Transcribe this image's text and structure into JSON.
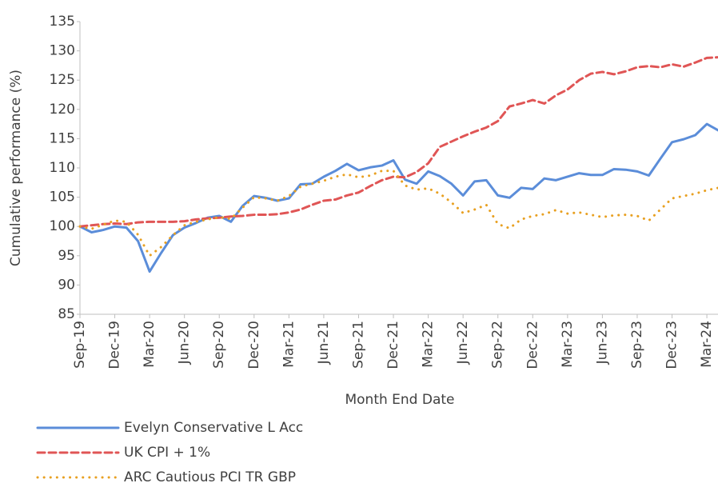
{
  "chart_data": {
    "type": "line",
    "y_label": "Cumulative performance (%)",
    "x_label": "Month End Date",
    "categories": [
      "Sep-19",
      null,
      null,
      "Dec-19",
      null,
      null,
      "Mar-20",
      null,
      null,
      "Jun-20",
      null,
      null,
      "Sep-20",
      null,
      null,
      "Dec-20",
      null,
      null,
      "Mar-21",
      null,
      null,
      "Jun-21",
      null,
      null,
      "Sep-21",
      null,
      null,
      "Dec-21",
      null,
      null,
      "Mar-22",
      null,
      null,
      "Jun-22",
      null,
      null,
      "Sep-22",
      null,
      null,
      "Dec-22",
      null,
      null,
      "Mar-23",
      null,
      null,
      "Jun-23",
      null,
      null,
      "Sep-23",
      null,
      null,
      "Dec-23",
      null,
      null,
      "Mar-24",
      null
    ],
    "series": [
      {
        "name": "Evelyn Conservative L Acc",
        "color": "#5b8dd9",
        "style": "solid",
        "values": [
          100,
          99,
          99.4,
          100,
          99.8,
          97.5,
          92.3,
          95.5,
          98.5,
          99.8,
          100.6,
          101.5,
          101.8,
          100.8,
          103.5,
          105.2,
          104.9,
          104.4,
          104.8,
          107.2,
          107.3,
          108.5,
          109.5,
          110.7,
          109.6,
          110.1,
          110.4,
          111.3,
          108.0,
          107.3,
          109.4,
          108.6,
          107.3,
          105.3,
          107.7,
          107.9,
          105.3,
          104.9,
          106.6,
          106.4,
          108.2,
          107.9,
          108.5,
          109.1,
          108.8,
          108.8,
          109.8,
          109.7,
          109.4,
          108.7,
          111.6,
          114.4,
          114.9,
          115.6,
          117.5,
          116.4
        ]
      },
      {
        "name": "UK CPI + 1%",
        "color": "#e05555",
        "style": "dashed",
        "values": [
          100,
          100.2,
          100.4,
          100.5,
          100.4,
          100.7,
          100.8,
          100.8,
          100.8,
          100.9,
          101.2,
          101.4,
          101.5,
          101.7,
          101.8,
          102.0,
          102.0,
          102.1,
          102.4,
          102.9,
          103.7,
          104.4,
          104.6,
          105.3,
          105.8,
          106.9,
          107.9,
          108.5,
          108.4,
          109.3,
          110.8,
          113.6,
          114.5,
          115.4,
          116.2,
          116.9,
          118.0,
          120.5,
          121.0,
          121.6,
          121.0,
          122.4,
          123.4,
          125.0,
          126.1,
          126.4,
          126.0,
          126.5,
          127.2,
          127.4,
          127.2,
          127.7,
          127.3,
          128.0,
          128.8,
          128.9
        ]
      },
      {
        "name": "ARC Cautious PCI TR GBP",
        "color": "#e8a021",
        "style": "dotted",
        "values": [
          100,
          99.6,
          100.3,
          101,
          100.8,
          98.6,
          95,
          96.5,
          98.5,
          100.2,
          100.8,
          101.2,
          101.6,
          101.3,
          103.2,
          105.0,
          104.8,
          104.4,
          105.2,
          106.8,
          107.3,
          107.8,
          108.5,
          108.9,
          108.4,
          108.7,
          109.5,
          109.5,
          107.0,
          106.3,
          106.5,
          105.6,
          104.1,
          102.3,
          102.9,
          103.7,
          100.4,
          99.7,
          101.2,
          101.8,
          102.1,
          102.8,
          102.2,
          102.4,
          102.0,
          101.6,
          101.9,
          102.0,
          101.8,
          101.0,
          102.9,
          104.8,
          105.2,
          105.6,
          106.2,
          106.6
        ]
      }
    ],
    "ylim": [
      85,
      135
    ],
    "yticks": [
      85,
      90,
      95,
      100,
      105,
      110,
      115,
      120,
      125,
      130,
      135
    ],
    "grid": false
  }
}
